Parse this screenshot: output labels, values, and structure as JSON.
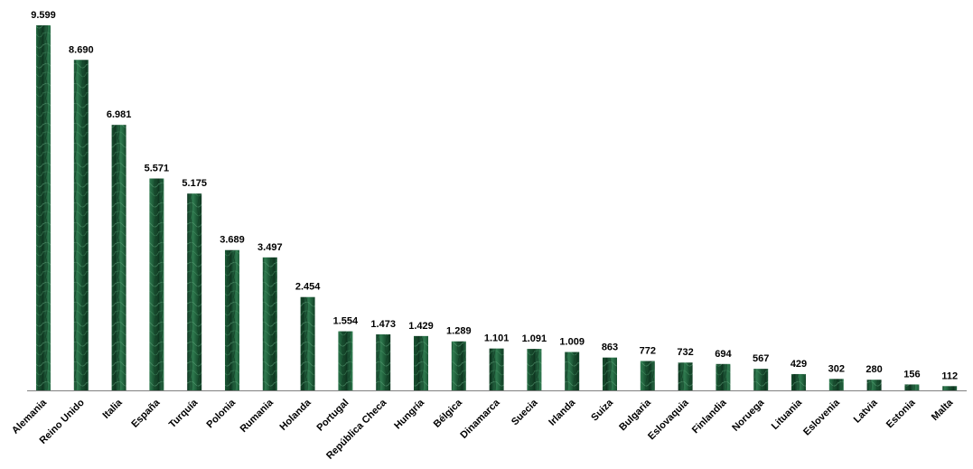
{
  "chart_data": {
    "type": "bar",
    "title": "",
    "xlabel": "",
    "ylabel": "",
    "ylim": [
      0,
      9599
    ],
    "grid": false,
    "legend": "none",
    "colors": {
      "bar_dark": "#0f3a23",
      "bar_light": "#3f8a60",
      "axis": "#808080"
    },
    "categories": [
      "Alemania",
      "Reino Unido",
      "Italia",
      "España",
      "Turquía",
      "Polonia",
      "Rumania",
      "Holanda",
      "Portugal",
      "República Checa",
      "Hungría",
      "Bélgica",
      "Dinamarca",
      "Suecia",
      "Irlanda",
      "Suiza",
      "Bulgaria",
      "Eslovaquia",
      "Finlandia",
      "Noruega",
      "Lituania",
      "Eslovenia",
      "Latvia",
      "Estonia",
      "Malta"
    ],
    "values": [
      9599,
      8690,
      6981,
      5571,
      5175,
      3689,
      3497,
      2454,
      1554,
      1473,
      1429,
      1289,
      1101,
      1091,
      1009,
      863,
      772,
      732,
      694,
      567,
      429,
      302,
      280,
      156,
      112
    ],
    "value_labels": [
      "9.599",
      "8.690",
      "6.981",
      "5.571",
      "5.175",
      "3.689",
      "3.497",
      "2.454",
      "1.554",
      "1.473",
      "1.429",
      "1.289",
      "1.101",
      "1.091",
      "1.009",
      "863",
      "772",
      "732",
      "694",
      "567",
      "429",
      "302",
      "280",
      "156",
      "112"
    ]
  }
}
